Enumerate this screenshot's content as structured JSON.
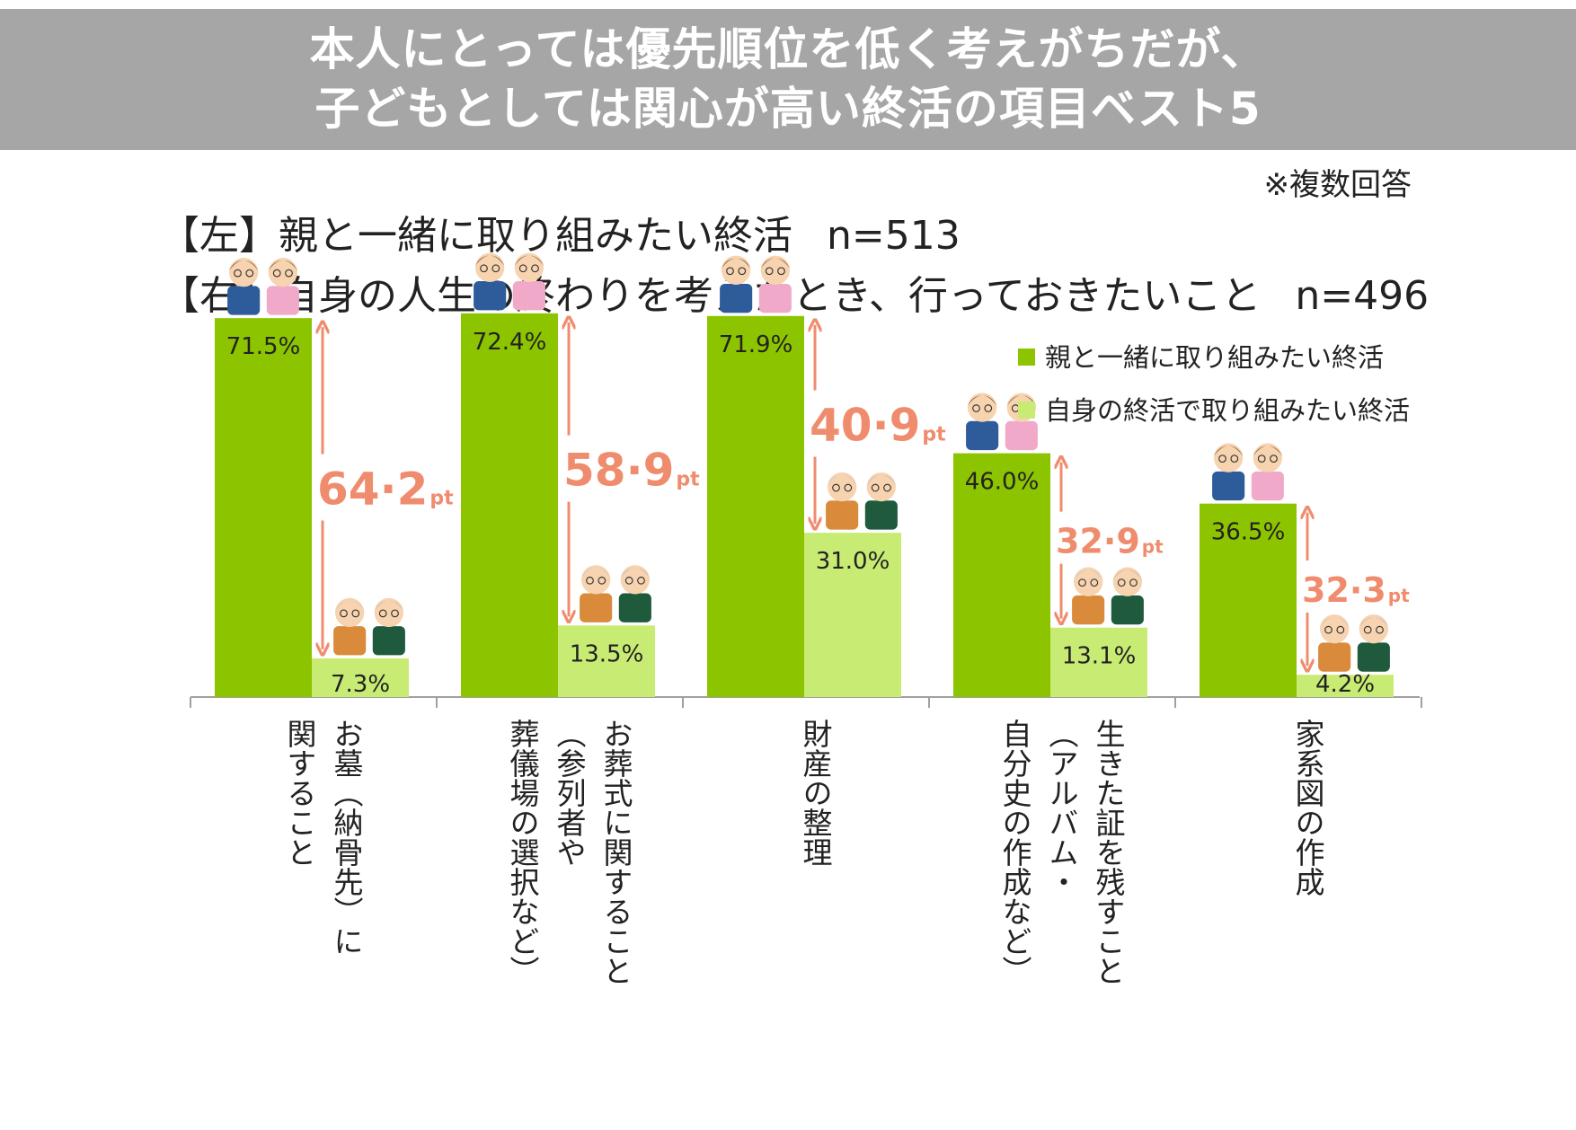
{
  "header": {
    "title_line1": "本人にとっては優先順位を低く考えがちだが、",
    "title_line2": "子どもとしては関心が高い終活の項目ベスト5"
  },
  "note": "※複数回答",
  "subtitles": {
    "left": {
      "text": "【左】親と一緒に取り組みたい終活",
      "n": "n=513"
    },
    "right": {
      "text": "【右】自身の人生の終わりを考えたとき、行っておきたいこと",
      "n": "n=496"
    }
  },
  "colors": {
    "dark_green": "#8dc400",
    "light_green": "#c8ec73",
    "arrow": "#f08c6e",
    "banner": "#a6a6a6"
  },
  "icons": [
    "parent-couple-icon",
    "self-couple-icon",
    "double-arrow-icon"
  ],
  "chart_data": {
    "type": "bar",
    "ylim": [
      0,
      100
    ],
    "categories": [
      [
        "お墓（納骨先）に",
        "関すること"
      ],
      [
        "お葬式に関すること",
        "（参列者や",
        "葬儀場の選択など）"
      ],
      [
        "財産の整理"
      ],
      [
        "生きた証を残すこと",
        "（アルバム・",
        "自分史の作成など）"
      ],
      [
        "家系図の作成"
      ]
    ],
    "series": [
      {
        "name": "親と一緒に取り組みたい終活",
        "values": [
          71.5,
          72.4,
          71.9,
          46.0,
          36.5
        ],
        "labels": [
          "71.5%",
          "72.4%",
          "71.9%",
          "46.0%",
          "36.5%"
        ]
      },
      {
        "name": "自身の終活で取り組みたい終活",
        "values": [
          7.3,
          13.5,
          31.0,
          13.1,
          4.2
        ],
        "labels": [
          "7.3%",
          "13.5%",
          "31.0%",
          "13.1%",
          "4.2%"
        ]
      }
    ],
    "differences": [
      {
        "value": "64.2",
        "text": "64·2",
        "unit": "pt"
      },
      {
        "value": "58.9",
        "text": "58·9",
        "unit": "pt"
      },
      {
        "value": "40.9",
        "text": "40·9",
        "unit": "pt"
      },
      {
        "value": "32.9",
        "text": "32·9",
        "unit": "pt"
      },
      {
        "value": "32.3",
        "text": "32·3",
        "unit": "pt"
      }
    ],
    "legend_position": "top-right",
    "grid": false
  }
}
